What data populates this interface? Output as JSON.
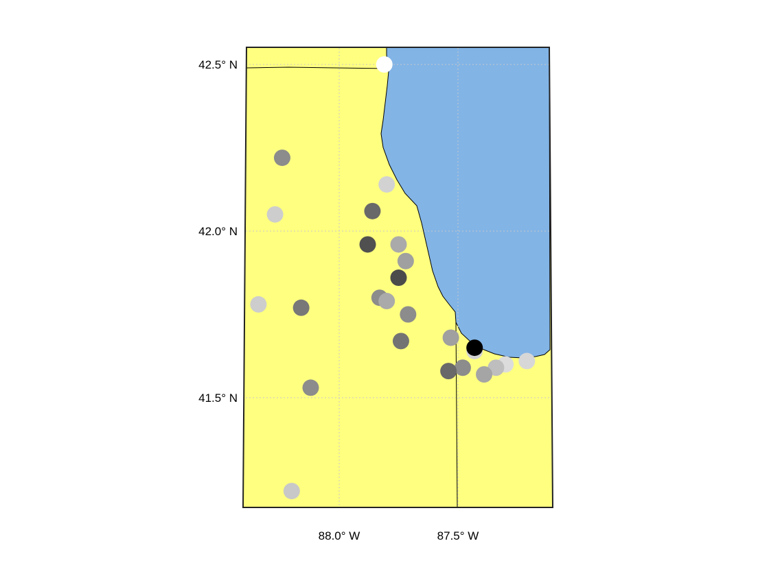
{
  "map": {
    "colors": {
      "land": "#ffff80",
      "water": "#82b4e6",
      "border": "#000000",
      "grid": "#c8c8c8"
    },
    "lat_ticks": [
      {
        "value": 42.5,
        "label": "42.5° N"
      },
      {
        "value": 42.0,
        "label": "42.0° N"
      },
      {
        "value": 41.5,
        "label": "41.5° N"
      }
    ],
    "lon_ticks": [
      {
        "value": -88.0,
        "label": "88.0° W"
      },
      {
        "value": -87.5,
        "label": "87.5° W"
      }
    ],
    "extent": {
      "lon": [
        -88.38,
        -87.17
      ],
      "lat": [
        41.17,
        42.56
      ]
    },
    "stations": [
      {
        "lon": -87.81,
        "lat": 42.5,
        "gray": 255
      },
      {
        "lon": -88.24,
        "lat": 42.22,
        "gray": 140
      },
      {
        "lon": -87.8,
        "lat": 42.14,
        "gray": 210
      },
      {
        "lon": -88.27,
        "lat": 42.05,
        "gray": 205
      },
      {
        "lon": -87.86,
        "lat": 42.06,
        "gray": 105
      },
      {
        "lon": -87.88,
        "lat": 41.96,
        "gray": 80
      },
      {
        "lon": -87.75,
        "lat": 41.96,
        "gray": 170
      },
      {
        "lon": -87.72,
        "lat": 41.91,
        "gray": 160
      },
      {
        "lon": -87.75,
        "lat": 41.86,
        "gray": 75
      },
      {
        "lon": -87.83,
        "lat": 41.8,
        "gray": 140
      },
      {
        "lon": -87.8,
        "lat": 41.79,
        "gray": 170
      },
      {
        "lon": -88.34,
        "lat": 41.78,
        "gray": 205
      },
      {
        "lon": -88.16,
        "lat": 41.77,
        "gray": 120
      },
      {
        "lon": -87.71,
        "lat": 41.75,
        "gray": 140
      },
      {
        "lon": -87.74,
        "lat": 41.67,
        "gray": 115
      },
      {
        "lon": -87.53,
        "lat": 41.68,
        "gray": 160
      },
      {
        "lon": -87.43,
        "lat": 41.64,
        "gray": 210
      },
      {
        "lon": -87.43,
        "lat": 41.65,
        "gray": 0
      },
      {
        "lon": -87.3,
        "lat": 41.6,
        "gray": 220
      },
      {
        "lon": -87.34,
        "lat": 41.59,
        "gray": 190
      },
      {
        "lon": -87.21,
        "lat": 41.61,
        "gray": 215
      },
      {
        "lon": -87.48,
        "lat": 41.59,
        "gray": 140
      },
      {
        "lon": -87.54,
        "lat": 41.58,
        "gray": 105
      },
      {
        "lon": -87.39,
        "lat": 41.57,
        "gray": 165
      },
      {
        "lon": -88.12,
        "lat": 41.53,
        "gray": 140
      },
      {
        "lon": -88.2,
        "lat": 41.22,
        "gray": 200
      }
    ]
  }
}
